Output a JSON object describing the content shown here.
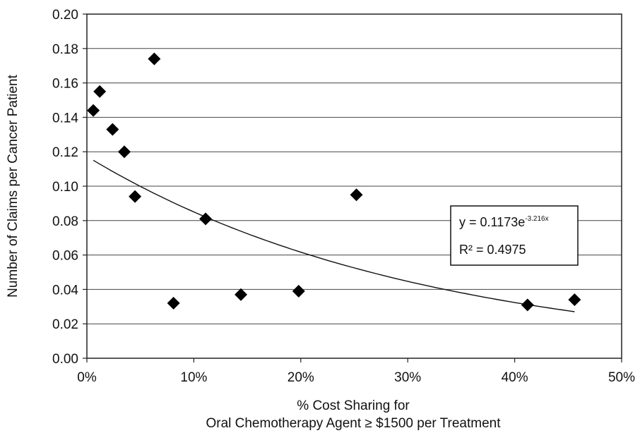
{
  "chart_data": {
    "type": "scatter",
    "title": "",
    "xlabel_line1": "% Cost Sharing for",
    "xlabel_line2": "Oral Chemotherapy Agent ≥ $1500 per Treatment",
    "ylabel": "Number of Claims per Cancer Patient",
    "xlim": [
      0,
      50
    ],
    "ylim": [
      0,
      0.2
    ],
    "x_unit": "%",
    "x_ticks": [
      "0%",
      "10%",
      "20%",
      "30%",
      "40%",
      "50%"
    ],
    "y_ticks": [
      "0.00",
      "0.02",
      "0.04",
      "0.06",
      "0.08",
      "0.10",
      "0.12",
      "0.14",
      "0.16",
      "0.18",
      "0.20"
    ],
    "grid": "horizontal",
    "points": [
      {
        "x": 0.6,
        "y": 0.144
      },
      {
        "x": 1.2,
        "y": 0.155
      },
      {
        "x": 2.4,
        "y": 0.133
      },
      {
        "x": 3.5,
        "y": 0.12
      },
      {
        "x": 4.5,
        "y": 0.094
      },
      {
        "x": 6.3,
        "y": 0.174
      },
      {
        "x": 8.1,
        "y": 0.032
      },
      {
        "x": 11.1,
        "y": 0.081
      },
      {
        "x": 14.4,
        "y": 0.037
      },
      {
        "x": 19.8,
        "y": 0.039
      },
      {
        "x": 25.2,
        "y": 0.095
      },
      {
        "x": 41.2,
        "y": 0.031
      },
      {
        "x": 45.6,
        "y": 0.034
      }
    ],
    "marker": "diamond",
    "marker_color": "#000000",
    "trendline": {
      "type": "exponential",
      "a": 0.1173,
      "b": -3.216,
      "x_range": [
        0.6,
        45.6
      ],
      "equation_main": "y = 0.1173e",
      "equation_exponent": "-3.216x",
      "r2_label": "R² = 0.4975"
    }
  }
}
